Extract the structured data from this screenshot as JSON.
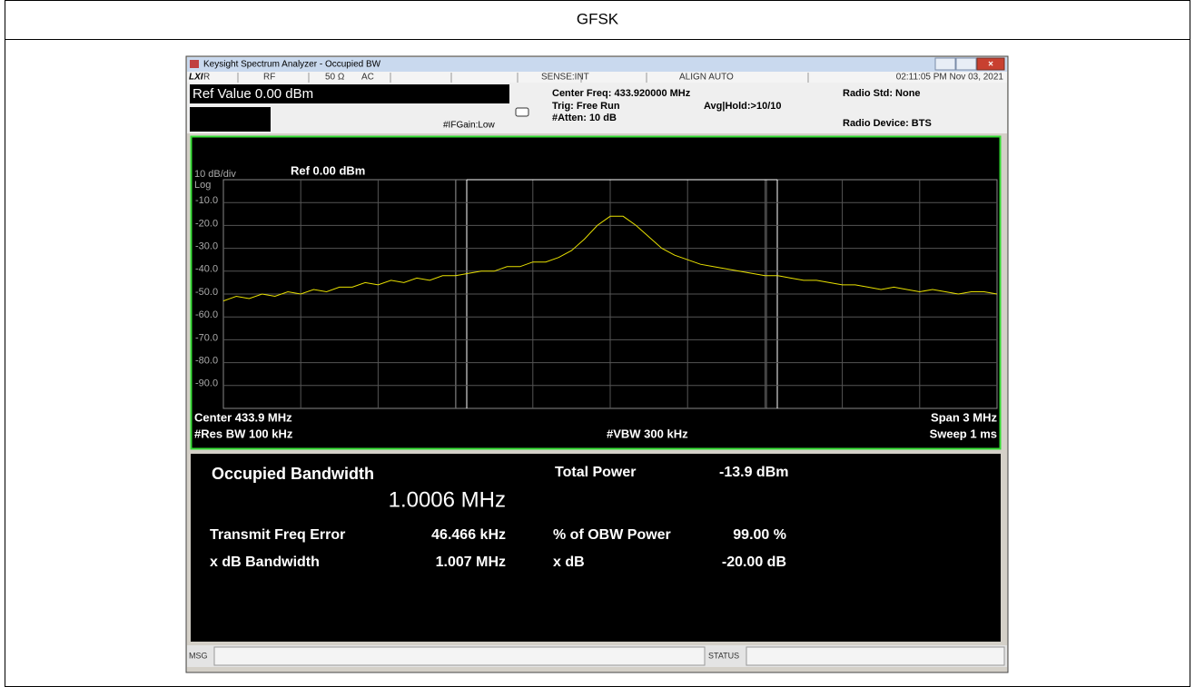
{
  "document": {
    "title": "GFSK"
  },
  "window": {
    "title": "Keysight Spectrum Analyzer - Occupied BW"
  },
  "status_bar": {
    "items": [
      "LXI",
      "R",
      "RF",
      "50 Ω",
      "AC",
      "SENSE:INT",
      "ALIGN AUTO",
      "02:11:05 PM Nov 03, 2021"
    ]
  },
  "settings": {
    "ref_value": "Ref Value 0.00 dBm",
    "if_gain": "#IFGain:Low",
    "center_freq": "Center Freq: 433.920000 MHz",
    "trig": "Trig: Free Run",
    "atten": "#Atten: 10 dB",
    "avg_hold": "Avg|Hold:>10/10",
    "radio_std": "Radio Std: None",
    "radio_device": "Radio Device: BTS"
  },
  "chart_data": {
    "type": "line",
    "scale_label": "10 dB/div",
    "ref_label": "Ref 0.00 dBm",
    "log_label": "Log",
    "ylim": [
      -100,
      0
    ],
    "yticks": [
      {
        "value": -10,
        "label": "-10.0"
      },
      {
        "value": -20,
        "label": "-20.0"
      },
      {
        "value": -30,
        "label": "-30.0"
      },
      {
        "value": -40,
        "label": "-40.0"
      },
      {
        "value": -50,
        "label": "-50.0"
      },
      {
        "value": -60,
        "label": "-60.0"
      },
      {
        "value": -70,
        "label": "-70.0"
      },
      {
        "value": -80,
        "label": "-80.0"
      },
      {
        "value": -90,
        "label": "-90.0"
      }
    ],
    "grid": true,
    "color": "#e8e000",
    "values": [
      -53,
      -51,
      -52,
      -50,
      -51,
      -49,
      -50,
      -48,
      -49,
      -47,
      -47,
      -45,
      -46,
      -44,
      -45,
      -43,
      -44,
      -42,
      -42,
      -41,
      -40,
      -40,
      -38,
      -38,
      -36,
      -36,
      -34,
      -31,
      -26,
      -20,
      -16,
      -16,
      -20,
      -25,
      -30,
      -33,
      -35,
      -37,
      -38,
      -39,
      -40,
      -41,
      -42,
      -42,
      -43,
      -44,
      -44,
      -45,
      -46,
      -46,
      -47,
      -48,
      -47,
      -48,
      -49,
      -48,
      -49,
      -50,
      -49,
      -49,
      -50
    ],
    "footer": {
      "center": "Center 433.9 MHz",
      "res_bw": "#Res BW 100 kHz",
      "vbw": "#VBW 300 kHz",
      "span": "Span 3 MHz",
      "sweep": "Sweep 1 ms"
    }
  },
  "results": {
    "occupied_bandwidth_label": "Occupied Bandwidth",
    "occupied_bandwidth": "1.0006 MHz",
    "total_power_label": "Total Power",
    "total_power": "-13.9 dBm",
    "rows": [
      [
        "Transmit Freq Error",
        "46.466 kHz",
        "% of OBW Power",
        "99.00 %"
      ],
      [
        "x dB Bandwidth",
        "1.007 MHz",
        "x dB",
        "-20.00 dB"
      ]
    ]
  },
  "message_bar": {
    "msg": "MSG",
    "status": "STATUS"
  }
}
